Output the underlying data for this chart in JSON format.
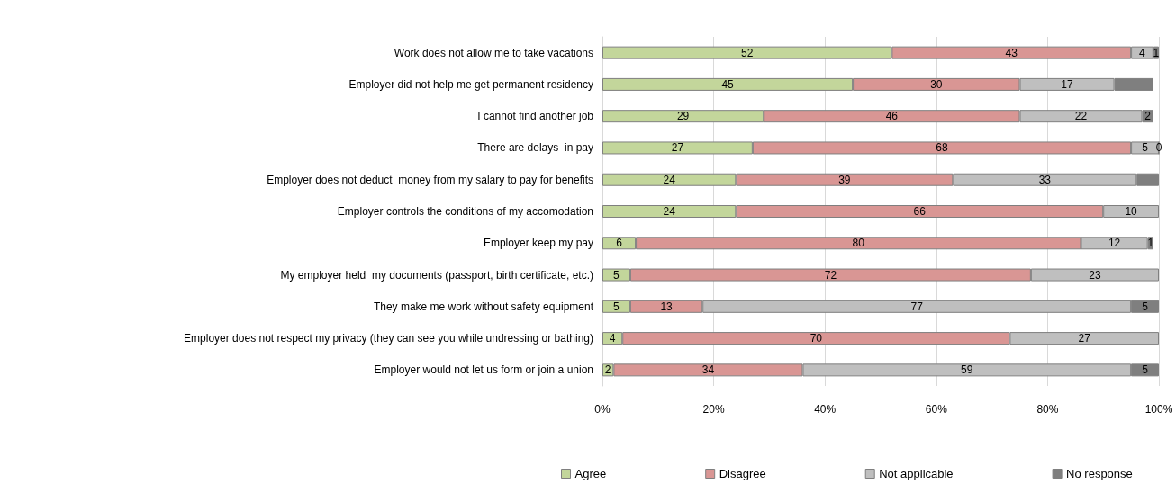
{
  "chart_data": {
    "type": "bar",
    "orientation": "horizontal",
    "stacked": true,
    "categories": [
      "Work does not allow me to take vacations",
      "Employer did not help me get permanent residency",
      "I cannot find another job",
      "There are delays  in pay",
      "Employer does not deduct  money from my salary to pay for benefits",
      "Employer controls the conditions of my accomodation",
      "Employer keep my pay",
      "My employer held  my documents (passport, birth certificate, etc.)",
      "They make me work without safety equipment",
      "Employer does not respect my privacy (they can see you while undressing or bathing)",
      "Employer would not let us form or join a union"
    ],
    "series": [
      {
        "name": "Agree",
        "color": "#c3d69b",
        "values": [
          52,
          45,
          29,
          27,
          24,
          24,
          6,
          5,
          5,
          3.6,
          2
        ],
        "value_labels": [
          "52",
          "45",
          "29",
          "27",
          "24",
          "24",
          "6",
          "5",
          "5",
          "4",
          "2"
        ]
      },
      {
        "name": "Disagree",
        "color": "#d99694",
        "values": [
          43,
          30,
          46,
          68,
          39,
          66,
          80,
          72,
          13,
          69.6,
          34
        ],
        "value_labels": [
          "43",
          "30",
          "46",
          "68",
          "39",
          "66",
          "80",
          "72",
          "13",
          "70",
          "34"
        ]
      },
      {
        "name": "Not applicable",
        "color": "#bfbfbf",
        "values": [
          4,
          17,
          22,
          5,
          33,
          10,
          12,
          23,
          77,
          26.8,
          59
        ],
        "value_labels": [
          "4",
          "17",
          "22",
          "5",
          "33",
          "10",
          "12",
          "23",
          "77",
          "27",
          "59"
        ]
      },
      {
        "name": "No response",
        "color": "#7f7f7f",
        "values": [
          1,
          7,
          2,
          0,
          4,
          null,
          1,
          null,
          5,
          null,
          5
        ],
        "value_labels": [
          "1",
          null,
          "2",
          "0",
          null,
          null,
          "1",
          null,
          "5",
          null,
          "5"
        ]
      }
    ],
    "xlim": [
      0,
      100
    ],
    "xticks": [
      {
        "value": 0,
        "label": "0%"
      },
      {
        "value": 20,
        "label": "20%"
      },
      {
        "value": 40,
        "label": "40%"
      },
      {
        "value": 60,
        "label": "60%"
      },
      {
        "value": 80,
        "label": "80%"
      },
      {
        "value": 100,
        "label": "100%"
      }
    ],
    "grid": "x",
    "legend": "bottom"
  }
}
